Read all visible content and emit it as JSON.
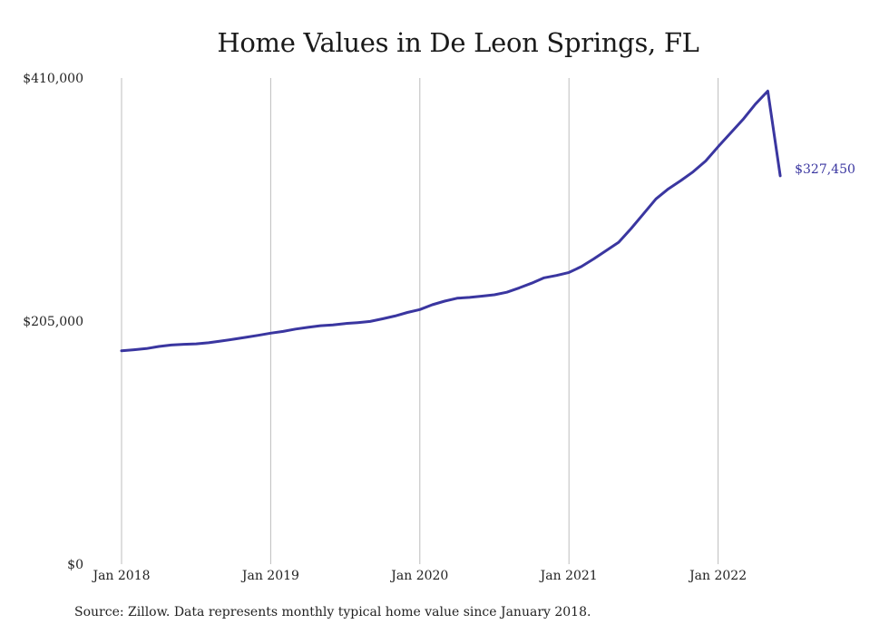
{
  "title": "Home Values in De Leon Springs, FL",
  "source": "Source: Zillow. Data represents monthly typical home value since January 2018.",
  "colors": {
    "line": "#3a36a0",
    "grid": "#bdbdbd",
    "text": "#222222"
  },
  "chart_data": {
    "type": "line",
    "title": "Home Values in De Leon Springs, FL",
    "xlabel": "",
    "ylabel": "",
    "ylim": [
      0,
      410000
    ],
    "y_ticks": [
      {
        "value": 0,
        "label": "$0"
      },
      {
        "value": 205000,
        "label": "$205,000"
      },
      {
        "value": 410000,
        "label": "$410,000"
      }
    ],
    "x_ticks": [
      {
        "month": 0,
        "label": "Jan 2018"
      },
      {
        "month": 12,
        "label": "Jan 2019"
      },
      {
        "month": 24,
        "label": "Jan 2020"
      },
      {
        "month": 36,
        "label": "Jan 2021"
      },
      {
        "month": 48,
        "label": "Jan 2022"
      }
    ],
    "grid": "vertical",
    "end_label": "$327,450",
    "series": [
      {
        "values": [
          180000,
          180800,
          181800,
          183600,
          184800,
          185400,
          185800,
          186700,
          188200,
          189700,
          191300,
          193000,
          194800,
          196300,
          198300,
          199700,
          201100,
          201800,
          202900,
          203700,
          204700,
          206900,
          209300,
          212300,
          214700,
          218800,
          221800,
          224300,
          225000,
          226000,
          227200,
          229300,
          233000,
          237000,
          241500,
          243500,
          246000,
          251000,
          257500,
          264500,
          271500,
          283000,
          295500,
          308000,
          316500,
          323500,
          331000,
          340000,
          352000,
          363500,
          375000,
          388000,
          399000,
          327450
        ]
      }
    ]
  }
}
